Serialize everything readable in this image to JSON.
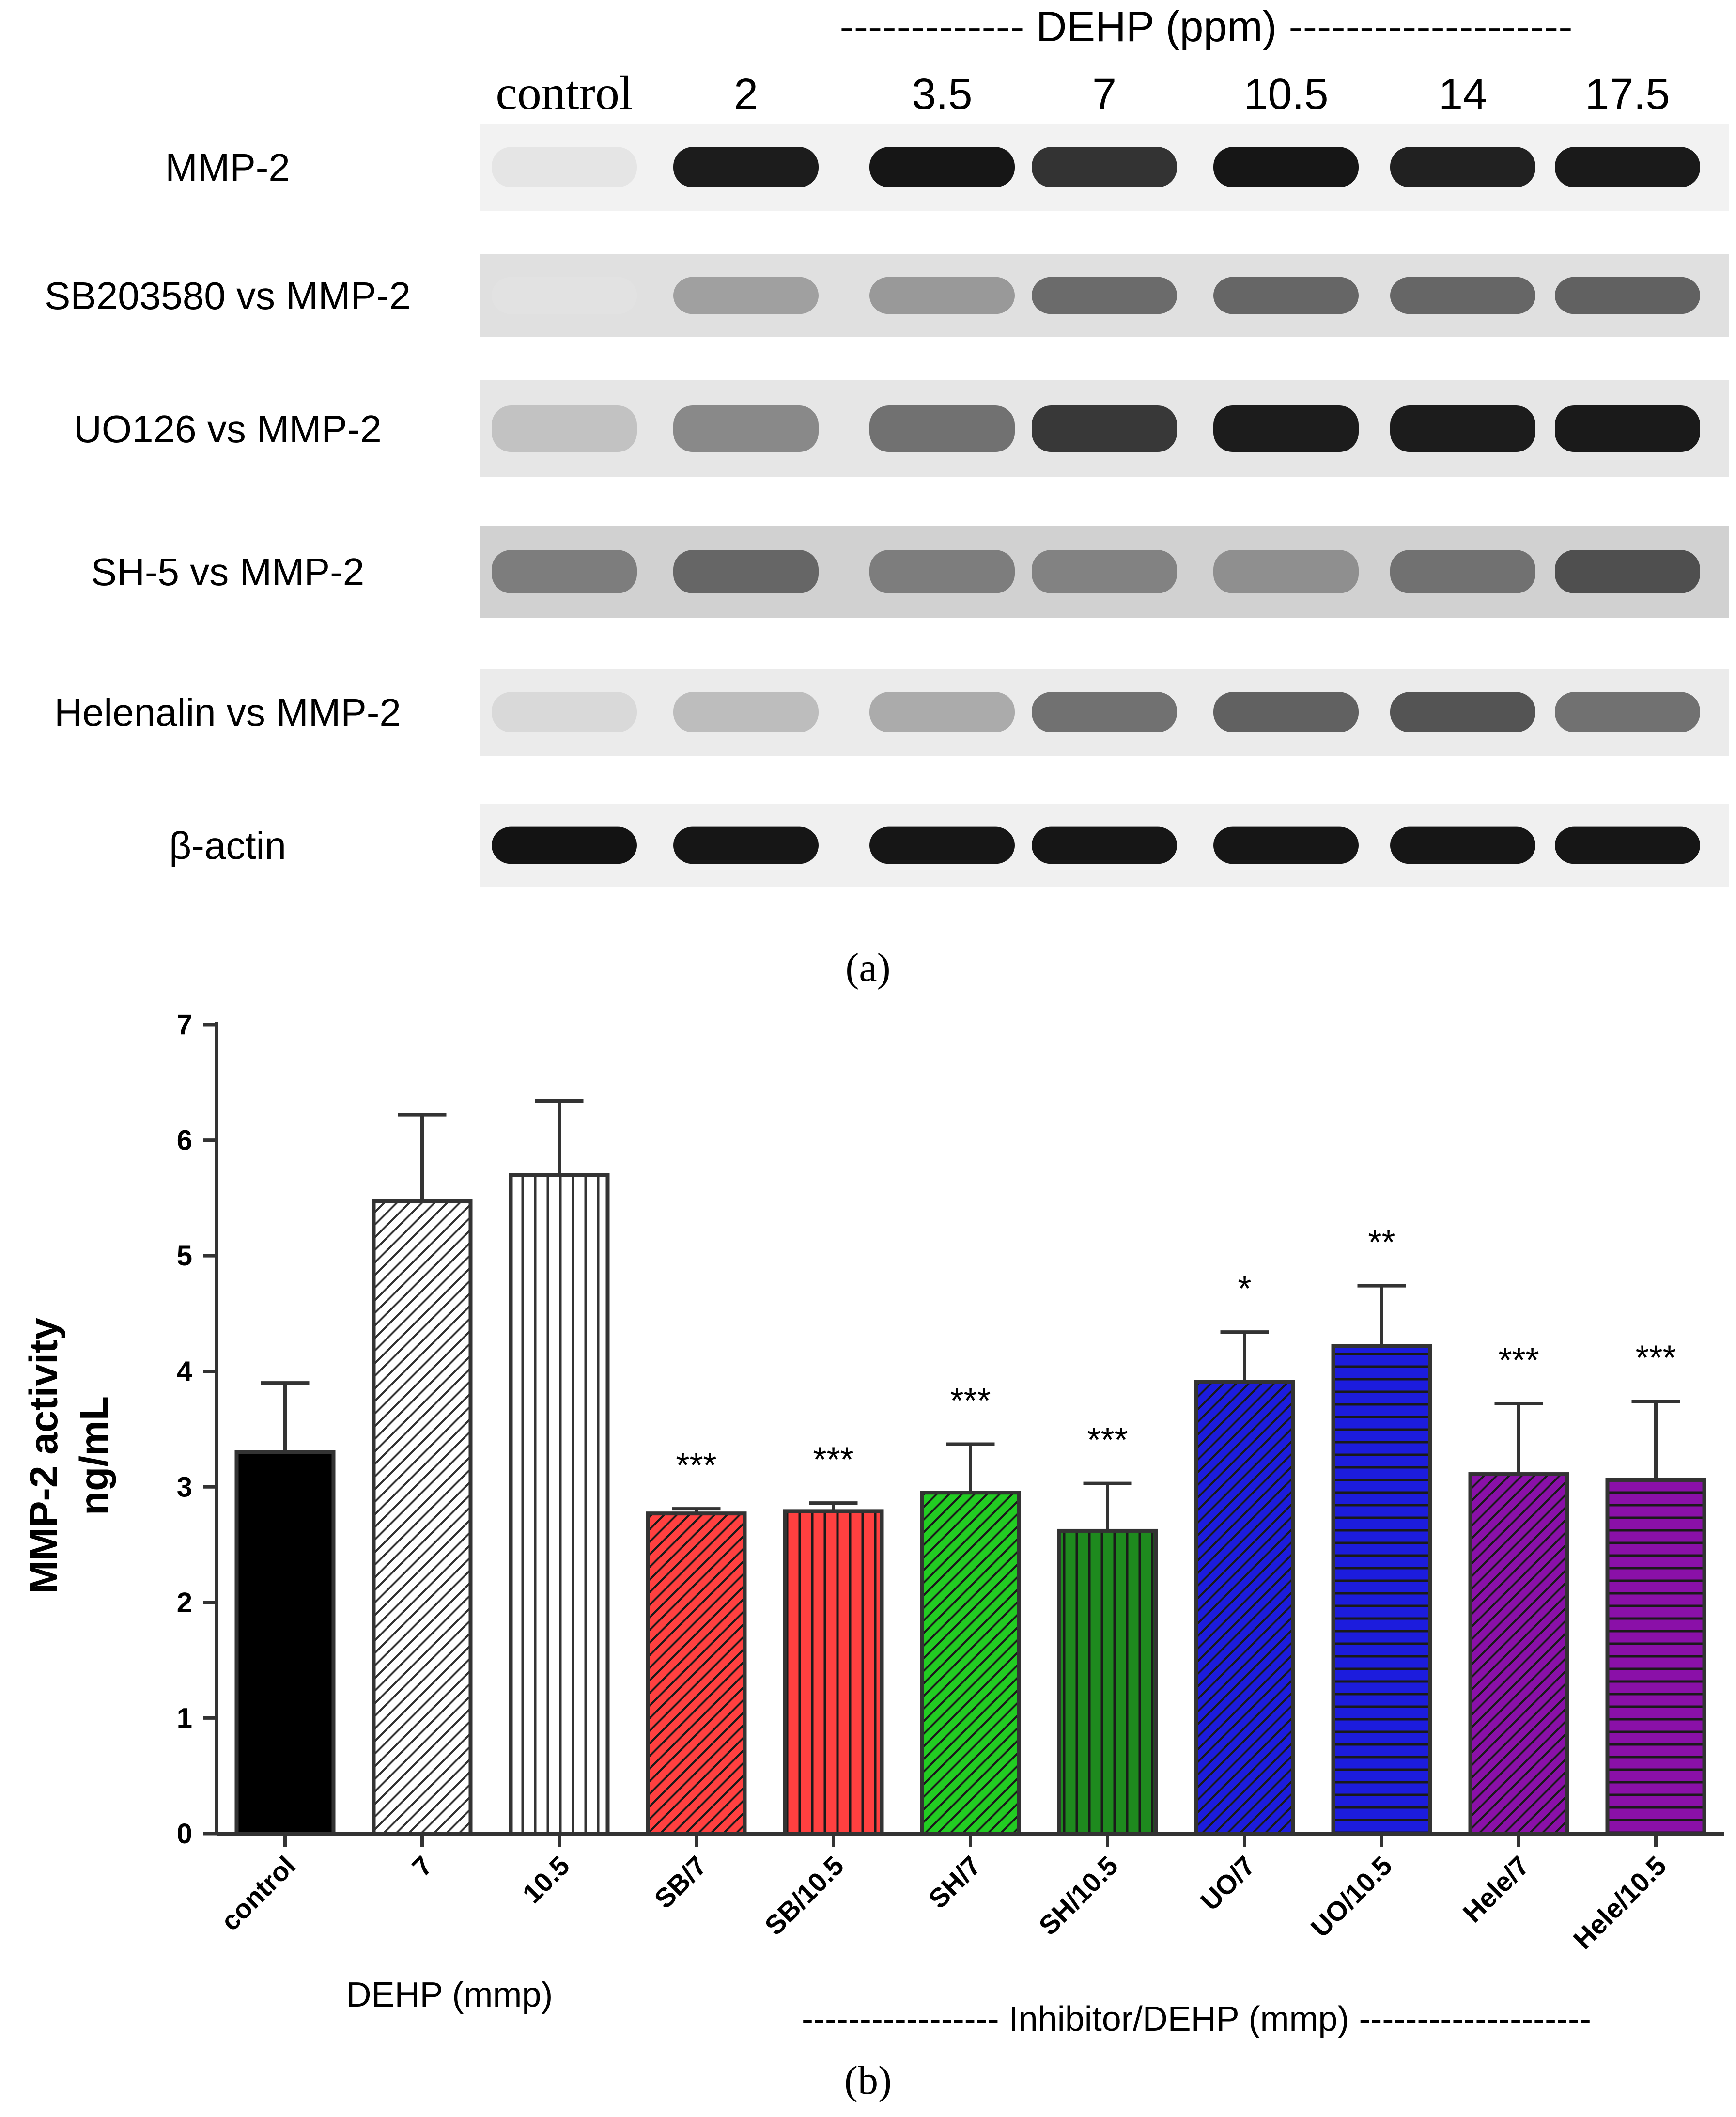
{
  "blot": {
    "dose_header": "------------- DEHP (ppm) --------------------",
    "control_label": "control",
    "doses": [
      "2",
      "3.5",
      "7",
      "10.5",
      "14",
      "17.5"
    ],
    "rows": [
      {
        "label": "MMP-2",
        "intensity": [
          0.05,
          0.92,
          0.95,
          0.82,
          0.95,
          0.9,
          0.93
        ],
        "background": 0.05
      },
      {
        "label": "SB203580 vs MMP-2",
        "intensity": [
          0.06,
          0.35,
          0.38,
          0.58,
          0.6,
          0.6,
          0.62
        ],
        "background": 0.12
      },
      {
        "label": "UO126 vs MMP-2",
        "intensity": [
          0.2,
          0.45,
          0.55,
          0.8,
          0.92,
          0.92,
          0.93
        ],
        "background": 0.1
      },
      {
        "label": "SH-5 vs MMP-2",
        "intensity": [
          0.5,
          0.6,
          0.5,
          0.48,
          0.42,
          0.55,
          0.7
        ],
        "background": 0.18
      },
      {
        "label": "Helenalin vs MMP-2",
        "intensity": [
          0.1,
          0.22,
          0.3,
          0.55,
          0.62,
          0.68,
          0.55
        ],
        "background": 0.08
      },
      {
        "label": "β-actin",
        "intensity": [
          0.96,
          0.95,
          0.95,
          0.95,
          0.95,
          0.95,
          0.95
        ],
        "background": 0.06
      }
    ],
    "panel_label": "(a)"
  },
  "chart_data": {
    "type": "bar",
    "categories": [
      "control",
      "7",
      "10.5",
      "SB/7",
      "SB/10.5",
      "SH/7",
      "SH/10.5",
      "UO/7",
      "UO/10.5",
      "Hele/7",
      "Hele/10.5"
    ],
    "values": [
      3.3,
      5.47,
      5.7,
      2.77,
      2.79,
      2.95,
      2.62,
      3.91,
      4.22,
      3.11,
      3.06
    ],
    "errors": [
      0.6,
      0.75,
      0.64,
      0.04,
      0.07,
      0.42,
      0.41,
      0.43,
      0.52,
      0.61,
      0.68
    ],
    "significance": [
      "",
      "",
      "",
      "***",
      "***",
      "***",
      "***",
      "*",
      "**",
      "***",
      "***"
    ],
    "fills": [
      "#000000",
      "#ffffff",
      "#ffffff",
      "#ff4040",
      "#ff4040",
      "#22cc22",
      "#1e8a1e",
      "#1c1cdd",
      "#1c1cdd",
      "#8a10a8",
      "#8a10a8"
    ],
    "patterns": [
      "solid",
      "diagonal",
      "vertical",
      "diagonal",
      "vertical",
      "diagonal",
      "vertical",
      "diagonal",
      "horizontal",
      "diagonal",
      "horizontal"
    ],
    "ylabel": "MMP-2 activity",
    "ylabel2": "ng/mL",
    "ylim": [
      0,
      7
    ],
    "yticks": [
      "0",
      "1",
      "2",
      "3",
      "4",
      "5",
      "6",
      "7"
    ],
    "group_labels": [
      {
        "text": "DEHP (mmp)"
      },
      {
        "text": "----------------- Inhibitor/DEHP (mmp) --------------------"
      }
    ],
    "panel_label": "(b)"
  }
}
